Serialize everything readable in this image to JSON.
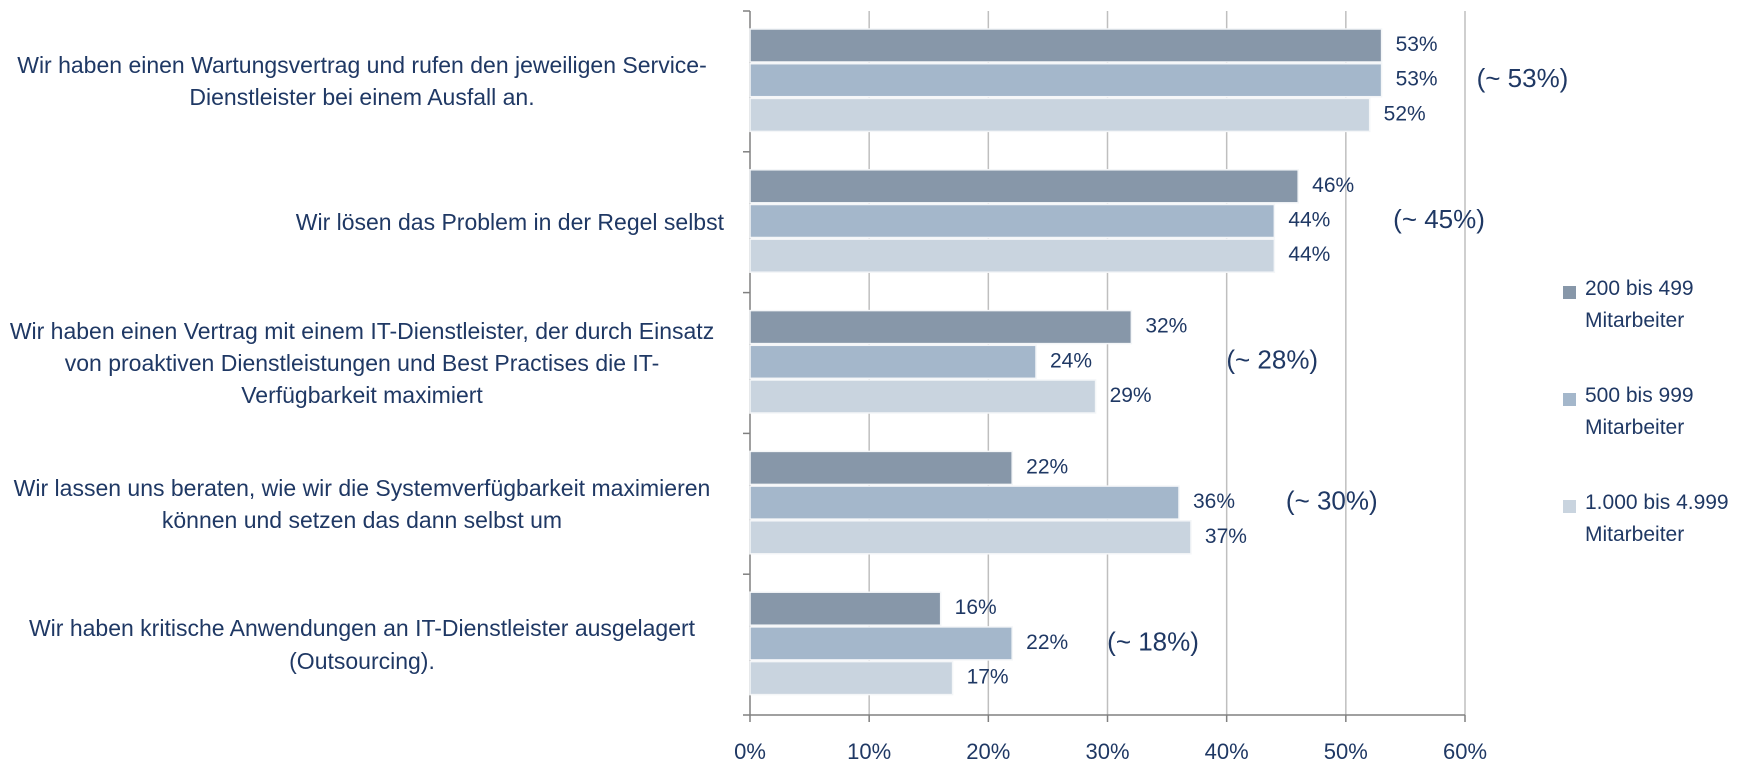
{
  "chart_data": {
    "type": "hbar",
    "categories": [
      "Wir haben einen Wartungsvertrag und rufen den jeweiligen Service-Dienstleister bei einem Ausfall an.",
      "Wir lösen das Problem in der Regel selbst",
      "Wir haben einen Vertrag mit einem IT-Dienstleister, der durch Einsatz von proaktiven Dienstleistungen und Best Practises die IT-Verfügbarkeit maximiert",
      "Wir lassen uns beraten, wie wir die Systemverfügbarkeit maximieren können und setzen das dann selbst um",
      "Wir haben kritische Anwendungen an IT-Dienstleister ausgelagert (Outsourcing)."
    ],
    "series": [
      {
        "name": "200 bis 499 Mitarbeiter",
        "color": "#8797a9",
        "values": [
          53,
          46,
          32,
          22,
          16
        ],
        "value_labels": [
          "53%",
          "46%",
          "32%",
          "22%",
          "16%"
        ]
      },
      {
        "name": "500 bis 999 Mitarbeiter",
        "color": "#a4b7cb",
        "values": [
          53,
          44,
          24,
          36,
          22
        ],
        "value_labels": [
          "53%",
          "44%",
          "24%",
          "36%",
          "22%"
        ]
      },
      {
        "name": "1.000 bis 4.999 Mitarbeiter",
        "color": "#c9d4df",
        "values": [
          52,
          44,
          29,
          37,
          17
        ],
        "value_labels": [
          "52%",
          "44%",
          "29%",
          "37%",
          "17%"
        ]
      }
    ],
    "annotations": [
      "(~ 53%)",
      "(~ 45%)",
      "(~ 28%)",
      "(~ 30%)",
      "(~ 18%)"
    ],
    "xlim": [
      0,
      60
    ],
    "xticks": [
      {
        "value": 0,
        "label": "0%"
      },
      {
        "value": 10,
        "label": "10%"
      },
      {
        "value": 20,
        "label": "20%"
      },
      {
        "value": 30,
        "label": "30%"
      },
      {
        "value": 40,
        "label": "40%"
      },
      {
        "value": 50,
        "label": "50%"
      },
      {
        "value": 60,
        "label": "60%"
      }
    ],
    "grid": true,
    "legend": "right"
  }
}
